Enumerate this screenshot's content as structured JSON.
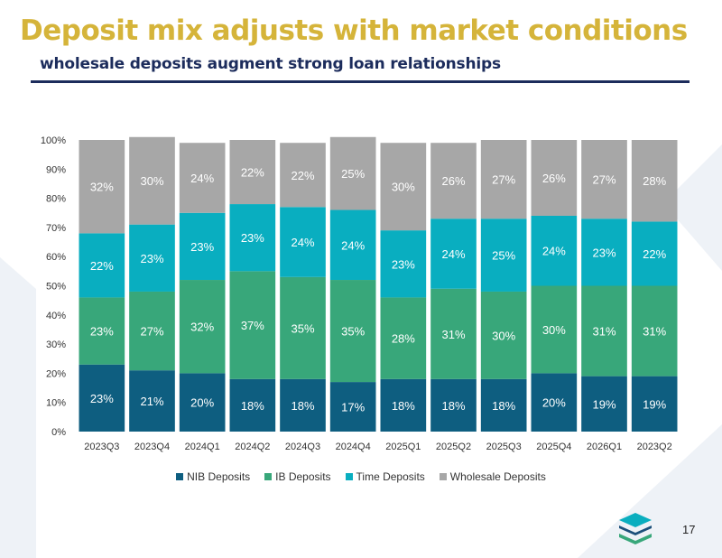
{
  "slide": {
    "title": "Deposit mix adjusts with market conditions",
    "subtitle": "wholesale deposits augment strong loan relationships",
    "page_number": "17"
  },
  "colors": {
    "title": "#d5b43a",
    "subtitle": "#1c2c5c",
    "nib": "#0e5e80",
    "ib": "#38a77a",
    "time": "#09aec0",
    "wholesale": "#a7a7a7"
  },
  "chart_data": {
    "type": "bar",
    "stacked": true,
    "percent_stacked": true,
    "categories": [
      "2023Q3",
      "2023Q4",
      "2024Q1",
      "2024Q2",
      "2024Q3",
      "2024Q4",
      "2025Q1",
      "2025Q2",
      "2025Q3",
      "2025Q4",
      "2026Q1",
      "2023Q2"
    ],
    "series": [
      {
        "name": "NIB Deposits",
        "color": "#0e5e80",
        "values": [
          23,
          21,
          20,
          18,
          18,
          17,
          18,
          18,
          18,
          20,
          19,
          19
        ]
      },
      {
        "name": "IB Deposits",
        "color": "#38a77a",
        "values": [
          23,
          27,
          32,
          37,
          35,
          35,
          28,
          31,
          30,
          30,
          31,
          31
        ]
      },
      {
        "name": "Time Deposits",
        "color": "#09aec0",
        "values": [
          22,
          23,
          23,
          23,
          24,
          24,
          23,
          24,
          25,
          24,
          23,
          22
        ]
      },
      {
        "name": "Wholesale Deposits",
        "color": "#a7a7a7",
        "values": [
          32,
          30,
          24,
          22,
          22,
          25,
          30,
          26,
          27,
          26,
          27,
          28
        ]
      }
    ],
    "data_labels": [
      [
        "23%",
        "21%",
        "20%",
        "18%",
        "18%",
        "17%",
        "18%",
        "18%",
        "18%",
        "20%",
        "19%",
        "19%"
      ],
      [
        "23%",
        "27%",
        "32%",
        "37%",
        "35%",
        "35%",
        "28%",
        "31%",
        "30%",
        "30%",
        "31%",
        "31%"
      ],
      [
        "22%",
        "23%",
        "23%",
        "23%",
        "24%",
        "24%",
        "23%",
        "24%",
        "25%",
        "24%",
        "23%",
        "22%"
      ],
      [
        "32%",
        "30%",
        "24%",
        "22%",
        "22%",
        "25%",
        "30%",
        "26%",
        "27%",
        "26%",
        "27%",
        "28%"
      ]
    ],
    "y_ticks": [
      "0%",
      "10%",
      "20%",
      "30%",
      "40%",
      "50%",
      "60%",
      "70%",
      "80%",
      "90%",
      "100%"
    ],
    "ylim": [
      0,
      100
    ],
    "legend_position": "bottom",
    "grid": false
  }
}
